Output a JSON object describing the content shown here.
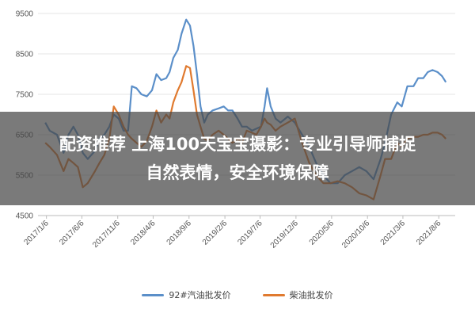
{
  "chart_data": {
    "type": "line",
    "ylim": [
      4500,
      9500
    ],
    "yticks": [
      4500,
      5500,
      6500,
      7500,
      8500,
      9500
    ],
    "xlim": [
      "2016-12-01",
      "2021-10-15"
    ],
    "xticks": [
      "2017/1/6",
      "2017/6/6",
      "2017/11/6",
      "2018/4/6",
      "2018/9/6",
      "2019/2/6",
      "2019/7/6",
      "2019/12/6",
      "2020/5/6",
      "2020/10/6",
      "2021/3/6",
      "2021/8/6"
    ],
    "xtick_dates": [
      "2017-01-06",
      "2017-06-06",
      "2017-11-06",
      "2018-04-06",
      "2018-09-06",
      "2019-02-06",
      "2019-07-06",
      "2019-12-06",
      "2020-05-06",
      "2020-10-06",
      "2021-03-06",
      "2021-08-06"
    ],
    "grid": "horizontal",
    "legend_position": "bottom",
    "series": [
      {
        "name": "92#汽油批发价",
        "color": "#5b8fc9",
        "points": [
          [
            "2017-01-01",
            6800
          ],
          [
            "2017-01-20",
            6600
          ],
          [
            "2017-02-20",
            6500
          ],
          [
            "2017-03-20",
            6050
          ],
          [
            "2017-04-10",
            6500
          ],
          [
            "2017-05-01",
            6700
          ],
          [
            "2017-05-20",
            6500
          ],
          [
            "2017-06-10",
            6050
          ],
          [
            "2017-07-01",
            5900
          ],
          [
            "2017-08-01",
            6100
          ],
          [
            "2017-08-20",
            6400
          ],
          [
            "2017-09-10",
            6500
          ],
          [
            "2017-10-01",
            6700
          ],
          [
            "2017-10-20",
            7000
          ],
          [
            "2017-11-10",
            6900
          ],
          [
            "2017-12-01",
            6600
          ],
          [
            "2017-12-20",
            6600
          ],
          [
            "2018-01-05",
            7700
          ],
          [
            "2018-01-25",
            7650
          ],
          [
            "2018-02-15",
            7500
          ],
          [
            "2018-03-10",
            7450
          ],
          [
            "2018-04-01",
            7600
          ],
          [
            "2018-04-20",
            8000
          ],
          [
            "2018-05-10",
            7850
          ],
          [
            "2018-06-01",
            7900
          ],
          [
            "2018-06-15",
            8050
          ],
          [
            "2018-07-01",
            8400
          ],
          [
            "2018-07-20",
            8600
          ],
          [
            "2018-08-05",
            9000
          ],
          [
            "2018-08-25",
            9350
          ],
          [
            "2018-09-10",
            9200
          ],
          [
            "2018-09-25",
            8700
          ],
          [
            "2018-10-10",
            8000
          ],
          [
            "2018-10-25",
            7200
          ],
          [
            "2018-11-10",
            6800
          ],
          [
            "2018-11-25",
            7000
          ],
          [
            "2018-12-15",
            7100
          ],
          [
            "2019-01-10",
            7150
          ],
          [
            "2019-02-01",
            7200
          ],
          [
            "2019-02-20",
            7100
          ],
          [
            "2019-03-10",
            7100
          ],
          [
            "2019-04-01",
            6900
          ],
          [
            "2019-04-20",
            6700
          ],
          [
            "2019-05-10",
            6700
          ],
          [
            "2019-06-01",
            6600
          ],
          [
            "2019-06-20",
            6650
          ],
          [
            "2019-07-10",
            6700
          ],
          [
            "2019-07-25",
            7200
          ],
          [
            "2019-08-05",
            7650
          ],
          [
            "2019-08-20",
            7200
          ],
          [
            "2019-09-10",
            6900
          ],
          [
            "2019-10-01",
            6800
          ],
          [
            "2019-11-01",
            6950
          ],
          [
            "2019-12-01",
            6800
          ],
          [
            "2020-01-01",
            6500
          ],
          [
            "2020-02-01",
            6200
          ],
          [
            "2020-03-01",
            5800
          ],
          [
            "2020-04-01",
            5500
          ],
          [
            "2020-05-01",
            5300
          ],
          [
            "2020-06-01",
            5300
          ],
          [
            "2020-07-01",
            5500
          ],
          [
            "2020-08-01",
            5600
          ],
          [
            "2020-09-01",
            5700
          ],
          [
            "2020-10-01",
            5600
          ],
          [
            "2020-11-01",
            5400
          ],
          [
            "2020-12-01",
            5900
          ],
          [
            "2020-12-20",
            6300
          ],
          [
            "2021-01-15",
            7000
          ],
          [
            "2021-02-10",
            7300
          ],
          [
            "2021-03-01",
            7200
          ],
          [
            "2021-03-25",
            7700
          ],
          [
            "2021-04-20",
            7700
          ],
          [
            "2021-05-10",
            7900
          ],
          [
            "2021-06-01",
            7900
          ],
          [
            "2021-06-20",
            8050
          ],
          [
            "2021-07-10",
            8100
          ],
          [
            "2021-08-01",
            8050
          ],
          [
            "2021-08-20",
            7950
          ],
          [
            "2021-09-05",
            7800
          ]
        ]
      },
      {
        "name": "柴油批发价",
        "color": "#e07a2f",
        "points": [
          [
            "2017-01-01",
            6300
          ],
          [
            "2017-01-20",
            6200
          ],
          [
            "2017-02-20",
            6000
          ],
          [
            "2017-03-20",
            5600
          ],
          [
            "2017-04-10",
            5900
          ],
          [
            "2017-05-01",
            5800
          ],
          [
            "2017-05-20",
            5700
          ],
          [
            "2017-06-10",
            5200
          ],
          [
            "2017-07-01",
            5300
          ],
          [
            "2017-08-01",
            5600
          ],
          [
            "2017-08-20",
            5800
          ],
          [
            "2017-09-10",
            6000
          ],
          [
            "2017-10-01",
            6400
          ],
          [
            "2017-10-20",
            7200
          ],
          [
            "2017-11-10",
            7000
          ],
          [
            "2017-12-01",
            6700
          ],
          [
            "2017-12-20",
            6500
          ],
          [
            "2018-01-05",
            6400
          ],
          [
            "2018-01-25",
            6300
          ],
          [
            "2018-02-15",
            6200
          ],
          [
            "2018-03-10",
            6350
          ],
          [
            "2018-04-01",
            6700
          ],
          [
            "2018-04-20",
            7100
          ],
          [
            "2018-05-10",
            6800
          ],
          [
            "2018-06-01",
            7000
          ],
          [
            "2018-06-15",
            6900
          ],
          [
            "2018-07-01",
            7300
          ],
          [
            "2018-07-20",
            7600
          ],
          [
            "2018-08-05",
            7800
          ],
          [
            "2018-08-25",
            8200
          ],
          [
            "2018-09-10",
            8150
          ],
          [
            "2018-09-25",
            7600
          ],
          [
            "2018-10-10",
            7000
          ],
          [
            "2018-10-25",
            6700
          ],
          [
            "2018-11-10",
            6400
          ],
          [
            "2018-11-25",
            6350
          ],
          [
            "2018-12-15",
            6500
          ],
          [
            "2019-01-10",
            6600
          ],
          [
            "2019-02-01",
            6500
          ],
          [
            "2019-02-20",
            6400
          ],
          [
            "2019-03-10",
            6300
          ],
          [
            "2019-04-01",
            6400
          ],
          [
            "2019-04-20",
            6300
          ],
          [
            "2019-05-10",
            6600
          ],
          [
            "2019-06-01",
            6550
          ],
          [
            "2019-06-20",
            6500
          ],
          [
            "2019-07-10",
            6700
          ],
          [
            "2019-07-25",
            6900
          ],
          [
            "2019-08-05",
            6800
          ],
          [
            "2019-08-20",
            6750
          ],
          [
            "2019-09-10",
            6600
          ],
          [
            "2019-10-01",
            6700
          ],
          [
            "2019-11-01",
            6800
          ],
          [
            "2019-12-01",
            6900
          ],
          [
            "2020-01-01",
            6300
          ],
          [
            "2020-02-01",
            5800
          ],
          [
            "2020-03-01",
            5500
          ],
          [
            "2020-04-01",
            5300
          ],
          [
            "2020-05-01",
            5300
          ],
          [
            "2020-06-01",
            5350
          ],
          [
            "2020-07-01",
            5300
          ],
          [
            "2020-08-01",
            5200
          ],
          [
            "2020-09-01",
            5050
          ],
          [
            "2020-10-01",
            5000
          ],
          [
            "2020-11-01",
            4900
          ],
          [
            "2020-12-01",
            5500
          ],
          [
            "2020-12-20",
            5900
          ],
          [
            "2021-01-15",
            5900
          ],
          [
            "2021-02-10",
            6300
          ],
          [
            "2021-03-01",
            6200
          ],
          [
            "2021-03-25",
            6400
          ],
          [
            "2021-04-20",
            6450
          ],
          [
            "2021-05-10",
            6450
          ],
          [
            "2021-06-01",
            6500
          ],
          [
            "2021-06-20",
            6500
          ],
          [
            "2021-07-10",
            6550
          ],
          [
            "2021-08-01",
            6550
          ],
          [
            "2021-08-20",
            6500
          ],
          [
            "2021-09-05",
            6400
          ]
        ]
      }
    ]
  },
  "overlay": {
    "line1": "配资推荐 上海100天宝宝摄影：专业引导师捕捉",
    "line2": "自然表情，安全环境保障",
    "background": "#464646"
  }
}
